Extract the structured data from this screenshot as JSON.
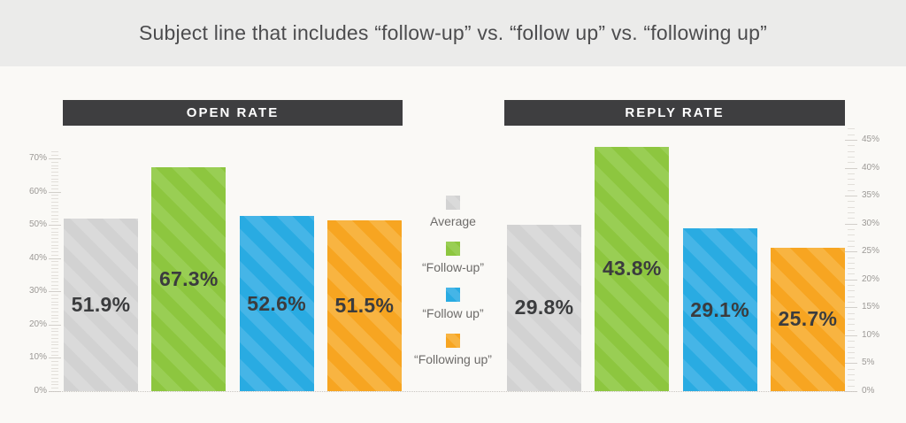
{
  "title": "Subject line that includes “follow-up” vs. “follow up” vs. “following up”",
  "legend": {
    "items": [
      {
        "label": "Average",
        "color": "#d2d2d2",
        "stripe": "#dadada"
      },
      {
        "label": "“Follow-up”",
        "color": "#8dc63f",
        "stripe": "#99ce54"
      },
      {
        "label": "“Follow up”",
        "color": "#29abe2",
        "stripe": "#45b5e7"
      },
      {
        "label": "“Following up”",
        "color": "#f7a521",
        "stripe": "#f8b441"
      }
    ]
  },
  "chart_data": [
    {
      "type": "bar",
      "title": "OPEN RATE",
      "categories": [
        "Average",
        "“Follow-up”",
        "“Follow up”",
        "“Following up”"
      ],
      "values": [
        51.9,
        67.3,
        52.6,
        51.5
      ],
      "data_labels": [
        "51.9%",
        "67.3%",
        "52.6%",
        "51.5%"
      ],
      "bar_colors": [
        "#d2d2d2",
        "#8dc63f",
        "#29abe2",
        "#f7a521"
      ],
      "bar_stripe_colors": [
        "#dadada",
        "#99ce54",
        "#45b5e7",
        "#f8b441"
      ],
      "axis_side": "left",
      "ylim": [
        0,
        70
      ],
      "ytick_step_major": 10,
      "ytick_step_minor": 1,
      "ytick_labels": [
        "0%",
        "10%",
        "20%",
        "30%",
        "40%",
        "50%",
        "60%",
        "70%"
      ],
      "legend_position": "center-between-charts",
      "grid": false
    },
    {
      "type": "bar",
      "title": "REPLY RATE",
      "categories": [
        "Average",
        "“Follow-up”",
        "“Follow up”",
        "“Following up”"
      ],
      "values": [
        29.8,
        43.8,
        29.1,
        25.7
      ],
      "data_labels": [
        "29.8%",
        "43.8%",
        "29.1%",
        "25.7%"
      ],
      "bar_colors": [
        "#d2d2d2",
        "#8dc63f",
        "#29abe2",
        "#f7a521"
      ],
      "bar_stripe_colors": [
        "#dadada",
        "#99ce54",
        "#45b5e7",
        "#f8b441"
      ],
      "axis_side": "right",
      "ylim": [
        0,
        45
      ],
      "ytick_step_major": 5,
      "ytick_step_minor": 1,
      "ytick_labels": [
        "0%",
        "5%",
        "10%",
        "15%",
        "20%",
        "25%",
        "30%",
        "35%",
        "40%",
        "45%"
      ],
      "legend_position": "center-between-charts",
      "grid": false
    }
  ],
  "colors": {
    "page_bg": "#faf9f6",
    "title_band_bg": "#ebebea",
    "title_text": "#4c4c4e",
    "header_bg": "#3e3e40",
    "header_text": "#ffffff",
    "value_label_text": "#3b3c3e",
    "axis_label_text": "#9c9996",
    "tick_minor": "#e2dfda",
    "tick_major": "#d2cfca",
    "baseline_dotted": "#c9c6c1",
    "legend_text": "#6d6b69"
  }
}
